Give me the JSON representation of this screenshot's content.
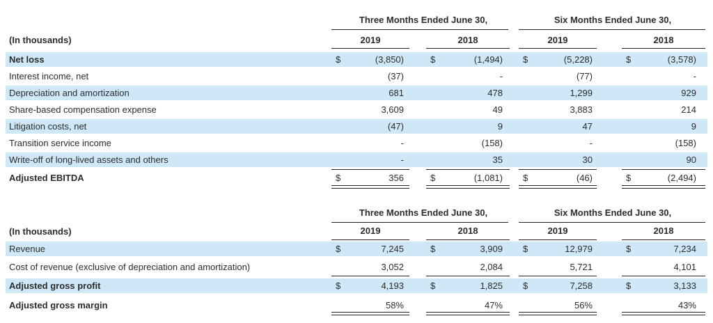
{
  "table1": {
    "period_headers": [
      "Three Months Ended June 30,",
      "Six Months Ended June 30,"
    ],
    "unit_label": "(In thousands)",
    "years": [
      "2019",
      "2018",
      "2019",
      "2018"
    ],
    "rows": [
      {
        "label": "Net loss",
        "bold": true,
        "shade": true,
        "dollar": true,
        "values": [
          "(3,850)",
          "(1,494)",
          "(5,228)",
          "(3,578)"
        ]
      },
      {
        "label": "Interest income, net",
        "bold": false,
        "shade": false,
        "dollar": false,
        "values": [
          "(37)",
          "-",
          "(77)",
          "-"
        ]
      },
      {
        "label": "Depreciation and amortization",
        "bold": false,
        "shade": true,
        "dollar": false,
        "values": [
          "681",
          "478",
          "1,299",
          "929"
        ]
      },
      {
        "label": "Share-based compensation expense",
        "bold": false,
        "shade": false,
        "dollar": false,
        "values": [
          "3,609",
          "49",
          "3,883",
          "214"
        ]
      },
      {
        "label": "Litigation costs, net",
        "bold": false,
        "shade": true,
        "dollar": false,
        "values": [
          "(47)",
          "9",
          "47",
          "9"
        ]
      },
      {
        "label": "Transition service income",
        "bold": false,
        "shade": false,
        "dollar": false,
        "values": [
          "-",
          "(158)",
          "-",
          "(158)"
        ]
      },
      {
        "label": "Write-off of long-lived assets and others",
        "bold": false,
        "shade": true,
        "dollar": false,
        "values": [
          "-",
          "35",
          "30",
          "90"
        ]
      },
      {
        "label": "Adjusted EBITDA",
        "bold": true,
        "shade": false,
        "dollar": true,
        "values": [
          "356",
          "(1,081)",
          "(46)",
          "(2,494)"
        ]
      }
    ]
  },
  "table2": {
    "period_headers": [
      "Three Months Ended June 30,",
      "Six Months Ended June 30,"
    ],
    "unit_label": "(In thousands)",
    "years": [
      "2019",
      "2018",
      "2019",
      "2018"
    ],
    "rows": [
      {
        "label": "Revenue",
        "bold": false,
        "shade": true,
        "dollar": true,
        "values": [
          "7,245",
          "3,909",
          "12,979",
          "7,234"
        ]
      },
      {
        "label": "Cost of revenue (exclusive of depreciation and amortization)",
        "bold": false,
        "shade": false,
        "dollar": false,
        "values": [
          "3,052",
          "2,084",
          "5,721",
          "4,101"
        ]
      },
      {
        "label": "Adjusted gross profit",
        "bold": true,
        "shade": true,
        "dollar": true,
        "values": [
          "4,193",
          "1,825",
          "7,258",
          "3,133"
        ]
      },
      {
        "label": "Adjusted gross margin",
        "bold": true,
        "shade": false,
        "dollar": false,
        "values": [
          "58%",
          "47%",
          "56%",
          "43%"
        ]
      }
    ]
  },
  "currency_symbol": "$"
}
